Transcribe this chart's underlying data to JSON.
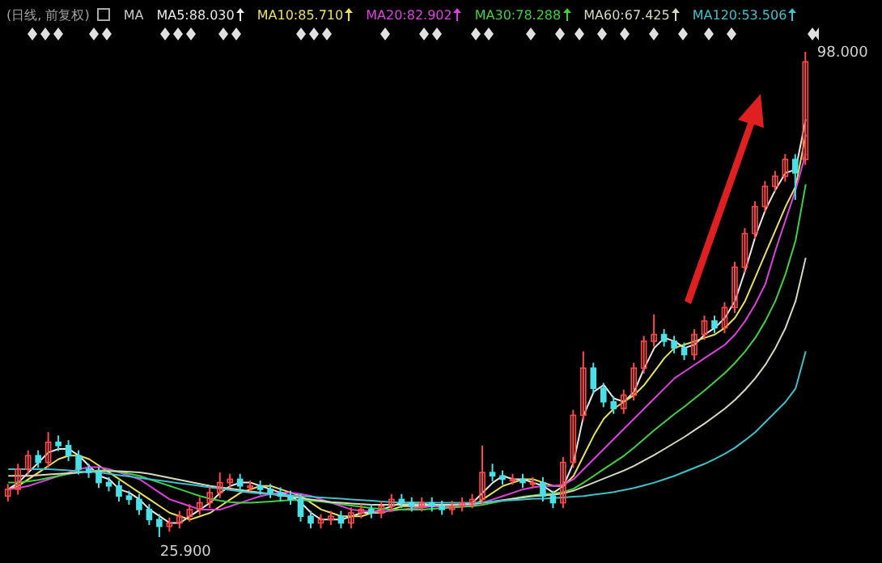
{
  "chart_data": {
    "type": "candlestick",
    "subtitle": "(日线, 前复权)",
    "legend_title": "MA",
    "legend": "top",
    "tick_labels": false,
    "categories": [
      null,
      null,
      null,
      null,
      null,
      null,
      null,
      null,
      null,
      null,
      null,
      null,
      null,
      null,
      null,
      null,
      null,
      null,
      null,
      null,
      null,
      null,
      null,
      null,
      null,
      null,
      null,
      null,
      null,
      null,
      null,
      null,
      null,
      null,
      null,
      null,
      null,
      null,
      null,
      null,
      null,
      null,
      null,
      null,
      null,
      null,
      null,
      null,
      null,
      null,
      null,
      null,
      null,
      null,
      null,
      null,
      null,
      null,
      null,
      null,
      null,
      null,
      null,
      null,
      null,
      null,
      null,
      null,
      null,
      null,
      null,
      null,
      null,
      null,
      null,
      null,
      null,
      null,
      null,
      null
    ],
    "ohlc": [
      [
        32,
        33.8,
        31.2,
        33
      ],
      [
        33,
        36.8,
        32.2,
        36
      ],
      [
        36,
        38.8,
        35.2,
        38
      ],
      [
        38,
        38.8,
        36.2,
        37
      ],
      [
        37,
        41.5,
        36.2,
        40
      ],
      [
        40,
        41,
        38.7,
        39.5
      ],
      [
        39.5,
        40.3,
        37.2,
        38
      ],
      [
        38,
        38.8,
        35.2,
        36
      ],
      [
        36,
        36.8,
        34.7,
        35.5
      ],
      [
        35.5,
        36.3,
        33.2,
        34
      ],
      [
        34,
        34.8,
        32.7,
        33.5
      ],
      [
        33.5,
        34.3,
        31.2,
        32
      ],
      [
        32,
        32.8,
        30.7,
        31.5
      ],
      [
        31.5,
        32.3,
        29.2,
        30
      ],
      [
        30,
        30.8,
        27.7,
        28.5
      ],
      [
        28.5,
        29.3,
        25.9,
        27.5
      ],
      [
        27.5,
        28.8,
        26.7,
        28
      ],
      [
        28,
        29.8,
        27.2,
        29
      ],
      [
        29,
        30.8,
        28.2,
        30
      ],
      [
        30,
        31.8,
        29.2,
        31
      ],
      [
        31,
        33.3,
        30.2,
        32.5
      ],
      [
        32.5,
        35.5,
        31.7,
        34
      ],
      [
        34,
        35.3,
        33.2,
        34.5
      ],
      [
        34.5,
        35.3,
        32.7,
        33.5
      ],
      [
        33.5,
        34.3,
        32.7,
        33.5
      ],
      [
        33.5,
        34.3,
        32.2,
        33
      ],
      [
        33,
        33.8,
        31.7,
        32.5
      ],
      [
        32.5,
        33.3,
        31.2,
        32
      ],
      [
        32,
        32.8,
        30.7,
        31.5
      ],
      [
        31.5,
        32.3,
        28.2,
        29
      ],
      [
        29,
        29.8,
        27.2,
        28
      ],
      [
        28,
        29.3,
        27.2,
        28.5
      ],
      [
        28.5,
        29.8,
        27.7,
        29
      ],
      [
        29,
        29.8,
        27.2,
        28
      ],
      [
        28,
        30.3,
        27.2,
        29.5
      ],
      [
        29.5,
        30.8,
        28.7,
        30
      ],
      [
        30,
        30.8,
        28.7,
        29.5
      ],
      [
        29.5,
        31.3,
        28.7,
        30.5
      ],
      [
        30.5,
        32.3,
        29.7,
        31.5
      ],
      [
        31.5,
        32.3,
        30.2,
        31
      ],
      [
        31,
        31.8,
        29.7,
        30.5
      ],
      [
        30.5,
        31.8,
        29.7,
        31
      ],
      [
        31,
        31.8,
        29.7,
        30.5
      ],
      [
        30.5,
        31.3,
        29.2,
        30
      ],
      [
        30,
        31.3,
        29.2,
        30.5
      ],
      [
        30.5,
        31.8,
        29.7,
        31
      ],
      [
        31,
        32.3,
        30.2,
        31.5
      ],
      [
        31.5,
        39.5,
        30.7,
        35.5
      ],
      [
        35.5,
        36.8,
        34.2,
        35
      ],
      [
        35,
        35.8,
        33.7,
        34.5
      ],
      [
        34.5,
        35.3,
        33.7,
        34.5
      ],
      [
        34.5,
        35.3,
        33.2,
        34
      ],
      [
        34,
        34.8,
        33.2,
        34
      ],
      [
        34,
        34.8,
        31.2,
        32
      ],
      [
        32,
        32.8,
        30.2,
        31
      ],
      [
        31,
        37.8,
        30.2,
        37
      ],
      [
        37,
        44.8,
        36.2,
        44
      ],
      [
        44,
        53.5,
        43.2,
        51
      ],
      [
        51,
        51.8,
        47.2,
        48
      ],
      [
        48,
        48.8,
        45.2,
        46
      ],
      [
        46,
        46.8,
        44.2,
        45
      ],
      [
        45,
        47.8,
        44.2,
        47
      ],
      [
        47,
        51.8,
        46.2,
        51
      ],
      [
        51,
        55.8,
        50.2,
        55
      ],
      [
        55,
        59,
        54.2,
        56
      ],
      [
        56,
        56.8,
        54.2,
        55
      ],
      [
        55,
        55.8,
        53.2,
        54
      ],
      [
        54,
        54.8,
        52.2,
        53
      ],
      [
        53,
        56.8,
        52.2,
        56
      ],
      [
        56,
        58.8,
        55.2,
        58
      ],
      [
        58,
        58.8,
        56.2,
        57
      ],
      [
        57,
        60.8,
        56.2,
        60
      ],
      [
        60,
        66.8,
        59.2,
        66
      ],
      [
        66,
        71.8,
        65.2,
        71
      ],
      [
        71,
        75.8,
        70.2,
        75
      ],
      [
        75,
        78.8,
        74.2,
        78
      ],
      [
        78,
        80.3,
        77.2,
        79.5
      ],
      [
        79.5,
        82.8,
        78.7,
        82
      ],
      [
        82,
        82.8,
        76,
        80
      ],
      [
        82,
        98,
        81.2,
        96.5
      ]
    ],
    "series": [
      {
        "name": "MA5:88.030",
        "type": "line",
        "color": "#e8e8e8",
        "values": [
          33,
          34,
          35.5,
          37,
          38.5,
          39,
          39,
          38,
          36.5,
          35,
          34.5,
          33,
          32.5,
          31.5,
          30,
          29,
          28,
          28,
          29,
          30,
          31,
          32.5,
          33.5,
          34,
          34,
          33.5,
          33,
          32.5,
          32,
          31,
          29.5,
          28.5,
          28.5,
          28.5,
          29,
          29.5,
          29.5,
          30,
          30.5,
          31,
          31,
          31,
          30.5,
          30.5,
          30.5,
          30.5,
          31,
          32.5,
          34,
          35,
          34.5,
          34.5,
          34,
          33.5,
          32.5,
          33.5,
          37,
          44,
          47.5,
          48.5,
          46.5,
          46,
          47.5,
          51,
          54,
          55.5,
          55,
          54,
          54.5,
          56,
          57,
          58.5,
          61,
          65.5,
          70.5,
          74.5,
          77.5,
          80,
          80.5,
          88
        ]
      },
      {
        "name": "MA10:85.710",
        "type": "line",
        "color": "#e8e060",
        "values": [
          33,
          33.5,
          34.5,
          35.5,
          36.5,
          37.5,
          38,
          38,
          37.5,
          36.5,
          35.5,
          34.5,
          33.5,
          32.5,
          31.5,
          30.5,
          29.5,
          29,
          28.5,
          29,
          29.5,
          30.5,
          31.5,
          32.5,
          33,
          33.5,
          33.5,
          33,
          32.5,
          32,
          31,
          30,
          29.5,
          29,
          29,
          29,
          29.5,
          29.5,
          30,
          30.5,
          30.5,
          30.5,
          30.5,
          30.5,
          30.5,
          30.5,
          30.5,
          31.5,
          32.5,
          33.5,
          34,
          34.5,
          34.5,
          34,
          33.5,
          33.5,
          35,
          38,
          41,
          43.5,
          45,
          46,
          47,
          48.5,
          50.5,
          52.5,
          54,
          54.5,
          55,
          55.5,
          56,
          57,
          58.5,
          61,
          64.5,
          68,
          71.5,
          75,
          78,
          85.7
        ]
      },
      {
        "name": "MA20:82.902",
        "type": "line",
        "color": "#e040e0",
        "values": [
          33,
          33.2,
          33.5,
          34,
          34.5,
          35,
          35.5,
          36,
          36.3,
          36.3,
          36,
          35.5,
          35,
          34.5,
          33.5,
          32.5,
          31.5,
          31,
          30.5,
          30,
          30,
          30,
          30.5,
          31,
          31.5,
          32,
          32.3,
          32.5,
          32.5,
          32.3,
          32,
          31.5,
          31,
          30.5,
          30,
          29.8,
          29.7,
          29.7,
          29.8,
          30,
          30.2,
          30.3,
          30.5,
          30.5,
          30.5,
          30.6,
          30.7,
          31,
          31.5,
          32,
          32.5,
          33,
          33.3,
          33.5,
          33.5,
          33.7,
          34.5,
          36,
          37.5,
          39,
          40.5,
          42,
          43.5,
          45,
          46.5,
          48,
          49.5,
          50.5,
          51.5,
          52.5,
          53.5,
          54.5,
          56,
          58,
          60.5,
          63.5,
          68.5,
          73,
          77.5,
          82.9
        ]
      },
      {
        "name": "MA30:78.288",
        "type": "line",
        "color": "#40d040",
        "values": [
          34,
          34,
          34.2,
          34.4,
          34.7,
          35,
          35.3,
          35.5,
          35.7,
          35.8,
          35.8,
          35.6,
          35.3,
          35,
          34.5,
          34,
          33.5,
          33,
          32.5,
          32,
          31.6,
          31.3,
          31.1,
          31,
          31,
          31.1,
          31.2,
          31.3,
          31.4,
          31.4,
          31.3,
          31.2,
          31,
          30.8,
          30.6,
          30.4,
          30.2,
          30.1,
          30,
          30,
          30,
          30,
          30.1,
          30.2,
          30.3,
          30.4,
          30.5,
          30.7,
          31,
          31.3,
          31.6,
          31.9,
          32.1,
          32.3,
          32.4,
          32.6,
          33.1,
          34,
          35,
          36,
          37,
          38,
          39.2,
          40.5,
          41.8,
          43,
          44.2,
          45.3,
          46.5,
          47.7,
          49,
          50.3,
          51.8,
          53.5,
          55.5,
          58,
          61,
          65,
          70,
          78.3
        ]
      },
      {
        "name": "MA60:67.425",
        "type": "line",
        "color": "#d8d8c0",
        "values": [
          35,
          35,
          35,
          35.1,
          35.2,
          35.3,
          35.4,
          35.5,
          35.6,
          35.7,
          35.7,
          35.7,
          35.6,
          35.5,
          35.3,
          35,
          34.7,
          34.4,
          34.1,
          33.8,
          33.5,
          33.3,
          33.1,
          32.9,
          32.7,
          32.5,
          32.3,
          32.1,
          31.9,
          31.7,
          31.5,
          31.3,
          31.1,
          31,
          30.9,
          30.8,
          30.7,
          30.7,
          30.7,
          30.7,
          30.7,
          30.7,
          30.7,
          30.7,
          30.7,
          30.8,
          30.9,
          31,
          31.2,
          31.4,
          31.6,
          31.8,
          32,
          32.1,
          32.2,
          32.4,
          32.8,
          33.4,
          34,
          34.6,
          35.2,
          35.8,
          36.5,
          37.3,
          38.1,
          39,
          39.9,
          40.8,
          41.8,
          42.8,
          43.9,
          45,
          46.3,
          47.8,
          49.5,
          51.5,
          54,
          57,
          61,
          67.4
        ]
      },
      {
        "name": "MA120:53.506",
        "type": "line",
        "color": "#40c0c8",
        "values": [
          36,
          36,
          36,
          36,
          36,
          35.9,
          35.8,
          35.7,
          35.6,
          35.5,
          35.3,
          35.1,
          34.9,
          34.7,
          34.5,
          34.3,
          34.1,
          33.9,
          33.7,
          33.5,
          33.3,
          33.1,
          32.9,
          32.7,
          32.5,
          32.4,
          32.3,
          32.2,
          32.1,
          32,
          31.9,
          31.8,
          31.7,
          31.6,
          31.5,
          31.4,
          31.3,
          31.2,
          31.1,
          31,
          31,
          31,
          31,
          31,
          31,
          31,
          31,
          31.1,
          31.2,
          31.3,
          31.4,
          31.5,
          31.6,
          31.6,
          31.7,
          31.8,
          31.9,
          32,
          32.2,
          32.4,
          32.6,
          32.9,
          33.2,
          33.6,
          34,
          34.5,
          35,
          35.6,
          36.2,
          36.8,
          37.5,
          38.3,
          39.2,
          40.3,
          41.5,
          43,
          44.5,
          46,
          48,
          53.5
        ]
      }
    ],
    "annotations": [
      "98.000",
      "25.900"
    ]
  }
}
